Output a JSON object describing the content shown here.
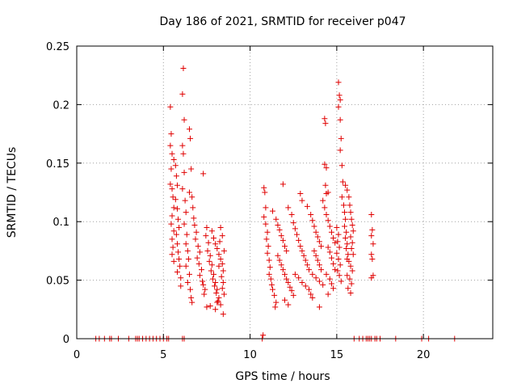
{
  "chart_data": {
    "type": "scatter",
    "title": "Day 186 of 2021, SRMTID for receiver p047",
    "xlabel": "GPS time / hours",
    "ylabel": "SRMTID / TECUs",
    "xlim": [
      0,
      24
    ],
    "ylim": [
      0,
      0.25
    ],
    "xticks": [
      0,
      5,
      10,
      15,
      20
    ],
    "xtick_labels": [
      "0",
      "5",
      "10",
      "15",
      "20"
    ],
    "yticks": [
      0,
      0.05,
      0.1,
      0.15,
      0.2,
      0.25
    ],
    "ytick_labels": [
      "0",
      "0.05",
      "0.1",
      "0.15",
      "0.2",
      "0.25"
    ],
    "grid": true,
    "marker": "+",
    "color": "#e00000",
    "series": [
      {
        "name": "p047",
        "points": [
          [
            1.1,
            0
          ],
          [
            1.3,
            0
          ],
          [
            1.6,
            0
          ],
          [
            1.9,
            0
          ],
          [
            2.0,
            0
          ],
          [
            2.4,
            0
          ],
          [
            3.0,
            0
          ],
          [
            3.4,
            0
          ],
          [
            3.5,
            0
          ],
          [
            3.6,
            0
          ],
          [
            3.8,
            0
          ],
          [
            4.0,
            0
          ],
          [
            4.2,
            0
          ],
          [
            4.4,
            0
          ],
          [
            4.6,
            0
          ],
          [
            4.8,
            0
          ],
          [
            5.0,
            0
          ],
          [
            5.2,
            0
          ],
          [
            5.3,
            0
          ],
          [
            6.1,
            0
          ],
          [
            6.2,
            0
          ],
          [
            10.7,
            0
          ],
          [
            10.75,
            0.003
          ],
          [
            16.0,
            0
          ],
          [
            16.3,
            0
          ],
          [
            16.5,
            0
          ],
          [
            16.7,
            0
          ],
          [
            16.8,
            0
          ],
          [
            16.9,
            0
          ],
          [
            17.0,
            0
          ],
          [
            17.2,
            0
          ],
          [
            17.3,
            0
          ],
          [
            17.5,
            0
          ],
          [
            18.4,
            0
          ],
          [
            19.9,
            0
          ],
          [
            20.3,
            0
          ],
          [
            21.8,
            0
          ],
          [
            5.4,
            0.198
          ],
          [
            5.45,
            0.175
          ],
          [
            5.4,
            0.165
          ],
          [
            5.5,
            0.158
          ],
          [
            5.45,
            0.145
          ],
          [
            5.4,
            0.132
          ],
          [
            5.5,
            0.128
          ],
          [
            5.55,
            0.121
          ],
          [
            5.6,
            0.112
          ],
          [
            5.5,
            0.105
          ],
          [
            5.45,
            0.098
          ],
          [
            5.6,
            0.092
          ],
          [
            5.5,
            0.085
          ],
          [
            5.55,
            0.078
          ],
          [
            5.5,
            0.072
          ],
          [
            5.6,
            0.066
          ],
          [
            5.6,
            0.153
          ],
          [
            5.7,
            0.148
          ],
          [
            5.75,
            0.139
          ],
          [
            5.8,
            0.131
          ],
          [
            5.7,
            0.119
          ],
          [
            5.8,
            0.111
          ],
          [
            5.85,
            0.102
          ],
          [
            5.9,
            0.095
          ],
          [
            5.75,
            0.089
          ],
          [
            5.8,
            0.081
          ],
          [
            5.85,
            0.074
          ],
          [
            5.9,
            0.068
          ],
          [
            5.95,
            0.062
          ],
          [
            5.8,
            0.057
          ],
          [
            6.0,
            0.052
          ],
          [
            6.0,
            0.045
          ],
          [
            6.1,
            0.209
          ],
          [
            6.15,
            0.231
          ],
          [
            6.2,
            0.187
          ],
          [
            6.1,
            0.165
          ],
          [
            6.15,
            0.158
          ],
          [
            6.2,
            0.142
          ],
          [
            6.1,
            0.128
          ],
          [
            6.25,
            0.118
          ],
          [
            6.3,
            0.108
          ],
          [
            6.2,
            0.098
          ],
          [
            6.35,
            0.089
          ],
          [
            6.3,
            0.081
          ],
          [
            6.4,
            0.075
          ],
          [
            6.45,
            0.068
          ],
          [
            6.3,
            0.062
          ],
          [
            6.5,
            0.055
          ],
          [
            6.4,
            0.048
          ],
          [
            6.55,
            0.042
          ],
          [
            6.6,
            0.035
          ],
          [
            6.65,
            0.031
          ],
          [
            6.5,
            0.179
          ],
          [
            6.55,
            0.171
          ],
          [
            6.6,
            0.145
          ],
          [
            6.5,
            0.125
          ],
          [
            6.65,
            0.121
          ],
          [
            6.7,
            0.112
          ],
          [
            6.75,
            0.103
          ],
          [
            6.8,
            0.097
          ],
          [
            6.9,
            0.091
          ],
          [
            6.85,
            0.085
          ],
          [
            7.0,
            0.079
          ],
          [
            7.1,
            0.074
          ],
          [
            6.95,
            0.069
          ],
          [
            7.05,
            0.064
          ],
          [
            7.2,
            0.059
          ],
          [
            7.1,
            0.054
          ],
          [
            7.25,
            0.049
          ],
          [
            7.3,
            0.046
          ],
          [
            7.4,
            0.042
          ],
          [
            7.35,
            0.038
          ],
          [
            7.3,
            0.141
          ],
          [
            7.5,
            0.095
          ],
          [
            7.45,
            0.088
          ],
          [
            7.6,
            0.082
          ],
          [
            7.55,
            0.075
          ],
          [
            7.7,
            0.071
          ],
          [
            7.65,
            0.066
          ],
          [
            7.8,
            0.063
          ],
          [
            7.75,
            0.058
          ],
          [
            7.9,
            0.055
          ],
          [
            7.85,
            0.051
          ],
          [
            8.0,
            0.048
          ],
          [
            7.95,
            0.045
          ],
          [
            8.1,
            0.042
          ],
          [
            8.05,
            0.039
          ],
          [
            8.2,
            0.035
          ],
          [
            8.15,
            0.032
          ],
          [
            8.3,
            0.029
          ],
          [
            7.5,
            0.027
          ],
          [
            7.7,
            0.028
          ],
          [
            7.8,
            0.092
          ],
          [
            7.9,
            0.086
          ],
          [
            8.0,
            0.081
          ],
          [
            8.1,
            0.077
          ],
          [
            8.2,
            0.072
          ],
          [
            8.3,
            0.068
          ],
          [
            8.4,
            0.064
          ],
          [
            8.45,
            0.058
          ],
          [
            8.35,
            0.053
          ],
          [
            8.45,
            0.048
          ],
          [
            8.4,
            0.043
          ],
          [
            8.5,
            0.038
          ],
          [
            8.3,
            0.095
          ],
          [
            8.25,
            0.083
          ],
          [
            8.45,
            0.021
          ],
          [
            8.4,
            0.088
          ],
          [
            8.5,
            0.075
          ],
          [
            8.2,
            0.062
          ],
          [
            8.0,
            0.025
          ],
          [
            8.1,
            0.031
          ],
          [
            10.8,
            0.129
          ],
          [
            10.85,
            0.125
          ],
          [
            10.9,
            0.112
          ],
          [
            10.8,
            0.104
          ],
          [
            10.9,
            0.098
          ],
          [
            11.0,
            0.091
          ],
          [
            10.95,
            0.085
          ],
          [
            11.05,
            0.079
          ],
          [
            11.0,
            0.073
          ],
          [
            11.1,
            0.067
          ],
          [
            11.15,
            0.061
          ],
          [
            11.1,
            0.055
          ],
          [
            11.2,
            0.051
          ],
          [
            11.25,
            0.046
          ],
          [
            11.3,
            0.042
          ],
          [
            11.4,
            0.037
          ],
          [
            11.5,
            0.031
          ],
          [
            11.45,
            0.027
          ],
          [
            11.3,
            0.109
          ],
          [
            11.5,
            0.102
          ],
          [
            11.6,
            0.097
          ],
          [
            11.7,
            0.093
          ],
          [
            11.8,
            0.088
          ],
          [
            11.9,
            0.084
          ],
          [
            12.0,
            0.079
          ],
          [
            12.1,
            0.075
          ],
          [
            11.6,
            0.071
          ],
          [
            11.7,
            0.067
          ],
          [
            11.8,
            0.063
          ],
          [
            11.9,
            0.059
          ],
          [
            12.0,
            0.055
          ],
          [
            12.1,
            0.051
          ],
          [
            12.2,
            0.048
          ],
          [
            12.3,
            0.044
          ],
          [
            12.4,
            0.041
          ],
          [
            12.5,
            0.037
          ],
          [
            12.0,
            0.033
          ],
          [
            12.2,
            0.029
          ],
          [
            11.9,
            0.132
          ],
          [
            12.2,
            0.112
          ],
          [
            12.4,
            0.106
          ],
          [
            12.5,
            0.099
          ],
          [
            12.6,
            0.094
          ],
          [
            12.7,
            0.089
          ],
          [
            12.8,
            0.084
          ],
          [
            12.9,
            0.079
          ],
          [
            13.0,
            0.075
          ],
          [
            13.1,
            0.071
          ],
          [
            13.2,
            0.067
          ],
          [
            13.3,
            0.063
          ],
          [
            13.4,
            0.059
          ],
          [
            12.6,
            0.055
          ],
          [
            12.8,
            0.052
          ],
          [
            13.0,
            0.048
          ],
          [
            13.2,
            0.045
          ],
          [
            13.4,
            0.042
          ],
          [
            13.5,
            0.038
          ],
          [
            13.6,
            0.035
          ],
          [
            12.9,
            0.124
          ],
          [
            13.0,
            0.118
          ],
          [
            13.3,
            0.113
          ],
          [
            13.5,
            0.106
          ],
          [
            13.6,
            0.101
          ],
          [
            13.7,
            0.096
          ],
          [
            13.8,
            0.091
          ],
          [
            13.9,
            0.087
          ],
          [
            14.0,
            0.083
          ],
          [
            14.1,
            0.079
          ],
          [
            13.7,
            0.075
          ],
          [
            13.8,
            0.071
          ],
          [
            13.9,
            0.067
          ],
          [
            14.0,
            0.063
          ],
          [
            14.1,
            0.059
          ],
          [
            13.6,
            0.055
          ],
          [
            13.8,
            0.052
          ],
          [
            14.0,
            0.049
          ],
          [
            14.2,
            0.046
          ],
          [
            14.0,
            0.027
          ],
          [
            14.2,
            0.118
          ],
          [
            14.3,
            0.112
          ],
          [
            14.4,
            0.106
          ],
          [
            14.5,
            0.101
          ],
          [
            14.6,
            0.096
          ],
          [
            14.7,
            0.091
          ],
          [
            14.8,
            0.086
          ],
          [
            14.9,
            0.082
          ],
          [
            14.5,
            0.078
          ],
          [
            14.6,
            0.074
          ],
          [
            14.7,
            0.069
          ],
          [
            14.8,
            0.064
          ],
          [
            14.9,
            0.059
          ],
          [
            14.4,
            0.055
          ],
          [
            14.6,
            0.051
          ],
          [
            14.7,
            0.047
          ],
          [
            14.8,
            0.043
          ],
          [
            14.5,
            0.038
          ],
          [
            14.3,
            0.188
          ],
          [
            14.35,
            0.184
          ],
          [
            14.3,
            0.149
          ],
          [
            14.4,
            0.146
          ],
          [
            14.35,
            0.131
          ],
          [
            14.4,
            0.124
          ],
          [
            14.5,
            0.125
          ],
          [
            15.1,
            0.219
          ],
          [
            15.15,
            0.208
          ],
          [
            15.2,
            0.204
          ],
          [
            15.1,
            0.198
          ],
          [
            15.2,
            0.187
          ],
          [
            15.25,
            0.171
          ],
          [
            15.2,
            0.161
          ],
          [
            15.3,
            0.148
          ],
          [
            15.35,
            0.134
          ],
          [
            15.3,
            0.121
          ],
          [
            15.4,
            0.114
          ],
          [
            15.45,
            0.108
          ],
          [
            15.5,
            0.102
          ],
          [
            15.45,
            0.096
          ],
          [
            15.55,
            0.091
          ],
          [
            15.5,
            0.086
          ],
          [
            15.6,
            0.081
          ],
          [
            15.55,
            0.077
          ],
          [
            15.65,
            0.072
          ],
          [
            15.6,
            0.068
          ],
          [
            15.5,
            0.131
          ],
          [
            15.6,
            0.127
          ],
          [
            15.7,
            0.121
          ],
          [
            15.75,
            0.114
          ],
          [
            15.8,
            0.108
          ],
          [
            15.85,
            0.102
          ],
          [
            15.9,
            0.097
          ],
          [
            15.95,
            0.092
          ],
          [
            15.8,
            0.087
          ],
          [
            15.9,
            0.082
          ],
          [
            15.85,
            0.077
          ],
          [
            15.95,
            0.072
          ],
          [
            15.7,
            0.066
          ],
          [
            15.8,
            0.062
          ],
          [
            15.9,
            0.058
          ],
          [
            15.6,
            0.054
          ],
          [
            15.75,
            0.051
          ],
          [
            15.85,
            0.047
          ],
          [
            15.65,
            0.043
          ],
          [
            15.8,
            0.039
          ],
          [
            15.0,
            0.095
          ],
          [
            15.1,
            0.089
          ],
          [
            15.05,
            0.083
          ],
          [
            15.15,
            0.078
          ],
          [
            15.0,
            0.073
          ],
          [
            15.1,
            0.068
          ],
          [
            15.2,
            0.063
          ],
          [
            15.05,
            0.058
          ],
          [
            15.15,
            0.054
          ],
          [
            15.25,
            0.049
          ],
          [
            17.0,
            0.106
          ],
          [
            17.05,
            0.093
          ],
          [
            17.0,
            0.088
          ],
          [
            17.1,
            0.081
          ],
          [
            17.0,
            0.072
          ],
          [
            17.05,
            0.068
          ],
          [
            17.1,
            0.054
          ],
          [
            17.0,
            0.052
          ]
        ]
      }
    ]
  }
}
